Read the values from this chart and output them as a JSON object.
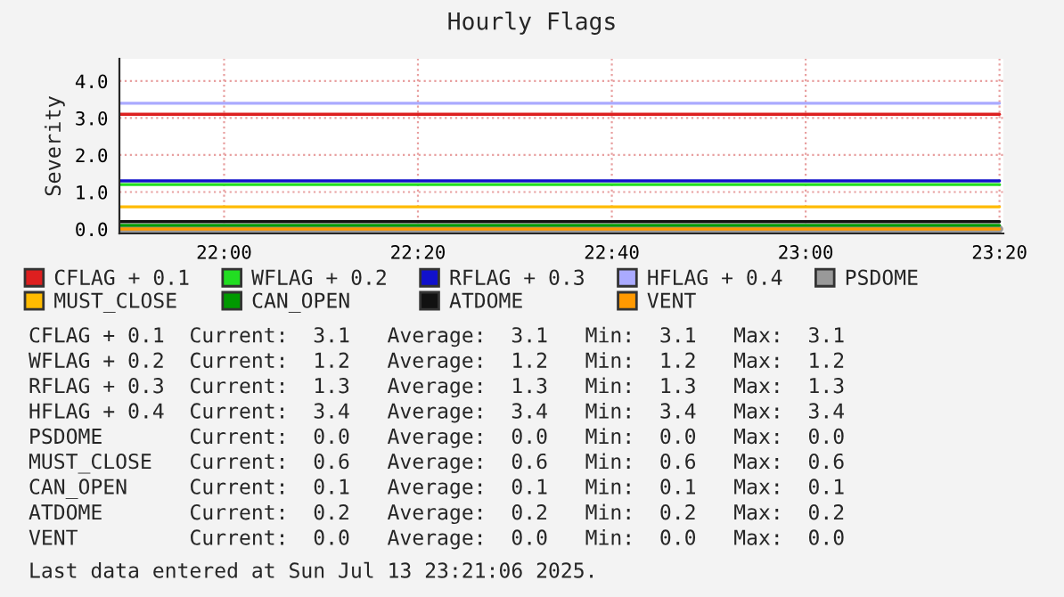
{
  "chart_data": {
    "type": "line",
    "title": "Hourly Flags",
    "ylabel": "Severity",
    "xlim": [
      21.82,
      23.34
    ],
    "xticks": [
      {
        "value": 22.0,
        "label": "22:00"
      },
      {
        "value": 22.3333,
        "label": "22:20"
      },
      {
        "value": 22.6667,
        "label": "22:40"
      },
      {
        "value": 23.0,
        "label": "23:00"
      },
      {
        "value": 23.3333,
        "label": "23:20"
      }
    ],
    "ylim": [
      -0.12,
      4.6
    ],
    "yticks": [
      {
        "value": 0,
        "label": "0.0"
      },
      {
        "value": 1,
        "label": "1.0"
      },
      {
        "value": 2,
        "label": "2.0"
      },
      {
        "value": 3,
        "label": "3.0"
      },
      {
        "value": 4,
        "label": "4.0"
      }
    ],
    "grid": true,
    "legend": "bottom",
    "marker": "none",
    "line_style": "solid",
    "x": [
      21.82,
      23.3333
    ],
    "series": [
      {
        "name": "CFLAG + 0.1",
        "color": "#dd1f1f",
        "values": [
          3.1,
          3.1
        ]
      },
      {
        "name": "WFLAG + 0.2",
        "color": "#22dd22",
        "values": [
          1.2,
          1.2
        ]
      },
      {
        "name": "RFLAG + 0.3",
        "color": "#1111cc",
        "values": [
          1.3,
          1.3
        ]
      },
      {
        "name": "HFLAG + 0.4",
        "color": "#aaaaff",
        "values": [
          3.4,
          3.4
        ]
      },
      {
        "name": "PSDOME",
        "color": "#999999",
        "values": [
          0.0,
          0.0
        ]
      },
      {
        "name": "MUST_CLOSE",
        "color": "#ffbb00",
        "values": [
          0.6,
          0.6
        ]
      },
      {
        "name": "CAN_OPEN",
        "color": "#009900",
        "values": [
          0.1,
          0.1
        ]
      },
      {
        "name": "ATDOME",
        "color": "#111111",
        "values": [
          0.2,
          0.2
        ]
      },
      {
        "name": "VENT",
        "color": "#ff9900",
        "values": [
          0.0,
          0.0
        ]
      }
    ],
    "annotations": [
      "CFLAG + 0.1  Current:  3.1   Average:  3.1   Min:  3.1   Max:  3.1",
      "WFLAG + 0.2  Current:  1.2   Average:  1.2   Min:  1.2   Max:  1.2",
      "RFLAG + 0.3  Current:  1.3   Average:  1.3   Min:  1.3   Max:  1.3",
      "HFLAG + 0.4  Current:  3.4   Average:  3.4   Min:  3.4   Max:  3.4",
      "PSDOME       Current:  0.0   Average:  0.0   Min:  0.0   Max:  0.0",
      "MUST_CLOSE   Current:  0.6   Average:  0.6   Min:  0.6   Max:  0.6",
      "CAN_OPEN     Current:  0.1   Average:  0.1   Min:  0.1   Max:  0.1",
      "ATDOME       Current:  0.2   Average:  0.2   Min:  0.2   Max:  0.2",
      "VENT         Current:  0.0   Average:  0.0   Min:  0.0   Max:  0.0",
      "Last data entered at Sun Jul 13 23:21:06 2025."
    ]
  }
}
